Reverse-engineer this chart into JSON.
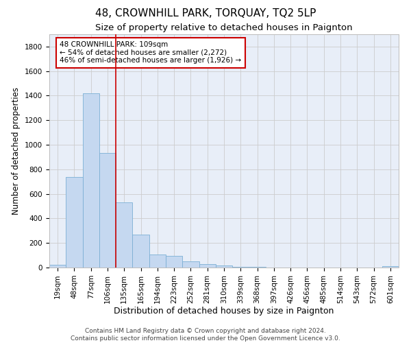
{
  "title": "48, CROWNHILL PARK, TORQUAY, TQ2 5LP",
  "subtitle": "Size of property relative to detached houses in Paignton",
  "xlabel": "Distribution of detached houses by size in Paignton",
  "ylabel": "Number of detached properties",
  "categories": [
    "19sqm",
    "48sqm",
    "77sqm",
    "106sqm",
    "135sqm",
    "165sqm",
    "194sqm",
    "223sqm",
    "252sqm",
    "281sqm",
    "310sqm",
    "339sqm",
    "368sqm",
    "397sqm",
    "426sqm",
    "456sqm",
    "485sqm",
    "514sqm",
    "543sqm",
    "572sqm",
    "601sqm"
  ],
  "values": [
    22,
    740,
    1420,
    935,
    530,
    270,
    105,
    95,
    48,
    28,
    18,
    8,
    5,
    2,
    1,
    1,
    0,
    0,
    0,
    0,
    12
  ],
  "bar_color": "#c5d8f0",
  "bar_edge_color": "#7bafd4",
  "bar_linewidth": 0.6,
  "vline_x_index": 3,
  "vline_color": "#cc0000",
  "vline_linewidth": 1.2,
  "annotation_text": "48 CROWNHILL PARK: 109sqm\n← 54% of detached houses are smaller (2,272)\n46% of semi-detached houses are larger (1,926) →",
  "annotation_box_color": "#ffffff",
  "annotation_box_edge_color": "#cc0000",
  "ylim": [
    0,
    1900
  ],
  "yticks": [
    0,
    200,
    400,
    600,
    800,
    1000,
    1200,
    1400,
    1600,
    1800
  ],
  "grid_color": "#cccccc",
  "axes_background": "#e8eef8",
  "footer_line1": "Contains HM Land Registry data © Crown copyright and database right 2024.",
  "footer_line2": "Contains public sector information licensed under the Open Government Licence v3.0.",
  "title_fontsize": 11,
  "subtitle_fontsize": 9.5,
  "xlabel_fontsize": 9,
  "ylabel_fontsize": 8.5,
  "tick_fontsize": 7.5,
  "annotation_fontsize": 7.5,
  "footer_fontsize": 6.5
}
